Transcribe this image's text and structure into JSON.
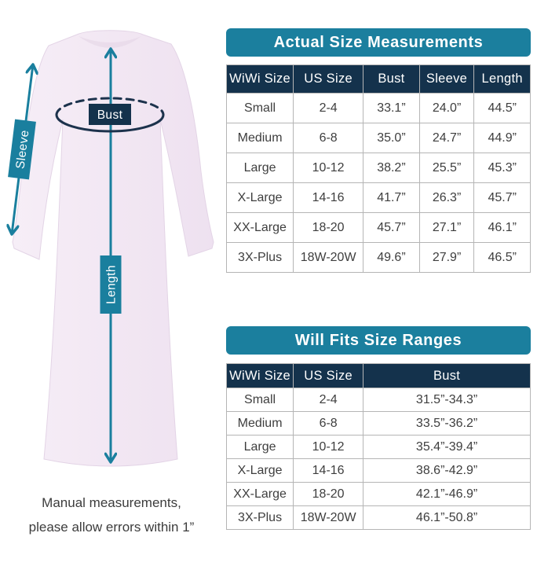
{
  "colors": {
    "teal_accent": "#1b7f9e",
    "navy_header": "#14324c",
    "table_border": "#b5b5b5",
    "cell_text": "#3e3e3e",
    "gown_fill": "#f2e8f3"
  },
  "diagram": {
    "labels": {
      "bust": "Bust",
      "sleeve": "Sleeve",
      "length": "Length"
    },
    "note_line1": "Manual measurements,",
    "note_line2": "please allow errors within 1”"
  },
  "table1": {
    "title": "Actual Size Measurements",
    "headers": [
      "WiWi Size",
      "US Size",
      "Bust",
      "Sleeve",
      "Length"
    ],
    "rows": [
      [
        "Small",
        "2-4",
        "33.1”",
        "24.0”",
        "44.5”"
      ],
      [
        "Medium",
        "6-8",
        "35.0”",
        "24.7”",
        "44.9”"
      ],
      [
        "Large",
        "10-12",
        "38.2”",
        "25.5”",
        "45.3”"
      ],
      [
        "X-Large",
        "14-16",
        "41.7”",
        "26.3”",
        "45.7”"
      ],
      [
        "XX-Large",
        "18-20",
        "45.7”",
        "27.1”",
        "46.1”"
      ],
      [
        "3X-Plus",
        "18W-20W",
        "49.6”",
        "27.9”",
        "46.5”"
      ]
    ]
  },
  "table2": {
    "title": "Will Fits Size Ranges",
    "headers": [
      "WiWi Size",
      "US Size",
      "Bust"
    ],
    "rows": [
      [
        "Small",
        "2-4",
        "31.5”-34.3”"
      ],
      [
        "Medium",
        "6-8",
        "33.5”-36.2”"
      ],
      [
        "Large",
        "10-12",
        "35.4”-39.4”"
      ],
      [
        "X-Large",
        "14-16",
        "38.6”-42.9”"
      ],
      [
        "XX-Large",
        "18-20",
        "42.1”-46.9”"
      ],
      [
        "3X-Plus",
        "18W-20W",
        "46.1”-50.8”"
      ]
    ]
  }
}
